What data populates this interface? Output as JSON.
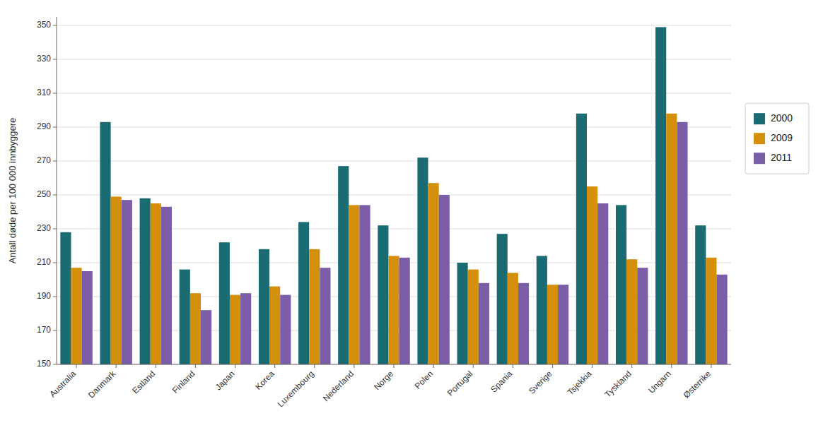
{
  "chart_data": {
    "type": "bar",
    "ylabel": "Antall døde per 100 000 innbyggere",
    "categories": [
      "Australia",
      "Danmark",
      "Estland",
      "Finland",
      "Japan",
      "Korea",
      "Luxembourg",
      "Nederland",
      "Norge",
      "Polen",
      "Portugal",
      "Spania",
      "Sverige",
      "Tsjekkia",
      "Tyskland",
      "Ungarn",
      "Østerrike"
    ],
    "series": [
      {
        "name": "2000",
        "color": "#1a6b72",
        "values": [
          228,
          293,
          248,
          206,
          222,
          218,
          234,
          267,
          232,
          272,
          210,
          227,
          214,
          298,
          244,
          349,
          232
        ]
      },
      {
        "name": "2009",
        "color": "#d4900a",
        "values": [
          207,
          249,
          245,
          192,
          191,
          196,
          218,
          244,
          214,
          257,
          206,
          204,
          197,
          255,
          212,
          298,
          213
        ]
      },
      {
        "name": "2011",
        "color": "#7b5ea7",
        "values": [
          205,
          247,
          243,
          182,
          192,
          191,
          207,
          244,
          213,
          250,
          198,
          198,
          197,
          245,
          207,
          293,
          203
        ]
      }
    ],
    "ylim": [
      150,
      355
    ],
    "yticks": [
      150,
      170,
      190,
      210,
      230,
      250,
      270,
      290,
      310,
      330,
      350
    ],
    "grid": true,
    "legend": "right"
  }
}
